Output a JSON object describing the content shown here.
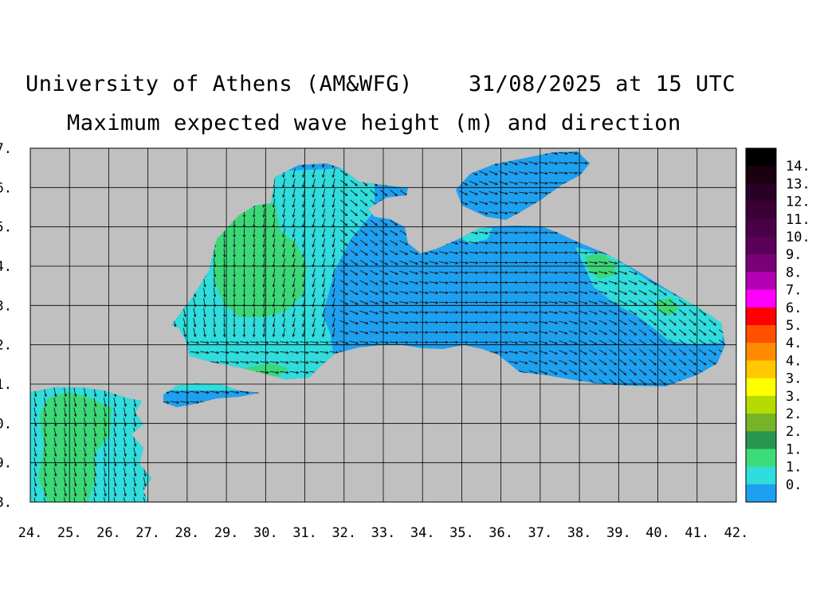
{
  "header": {
    "institution": "University of Athens (AM&WFG)",
    "datetime": "31/08/2025 at 15 UTC",
    "subtitle": "Maximum expected wave height (m) and direction"
  },
  "map": {
    "lon_ticks": [
      "24.",
      "25.",
      "26.",
      "27.",
      "28.",
      "29.",
      "30.",
      "31.",
      "32.",
      "33.",
      "34.",
      "35.",
      "36.",
      "37.",
      "38.",
      "39.",
      "40.",
      "41.",
      "42."
    ],
    "lat_ticks": [
      "7.",
      "6.",
      "5.",
      "4.",
      "3.",
      "2.",
      "1.",
      "0.",
      "9.",
      "8."
    ],
    "colors": {
      "land": "#c0c0c0",
      "wave_0_05": "#1ea0f0",
      "wave_05_1": "#30dcdc",
      "wave_1_15": "#3cd878",
      "grid": "#000000"
    }
  },
  "colorbar": {
    "labels": [
      "14.",
      "13.",
      "12.",
      "11.",
      "10.",
      "9.",
      "8.",
      "7.",
      "6.",
      "5.",
      "4.",
      "4.",
      "3.",
      "3.",
      "2.",
      "2.",
      "1.",
      "1.",
      "0."
    ],
    "colors": [
      "#000000",
      "#1a0010",
      "#2a0024",
      "#3a0036",
      "#4a0046",
      "#5a0058",
      "#7a0078",
      "#b400b4",
      "#ff00ff",
      "#ff0000",
      "#ff5000",
      "#ff8c00",
      "#ffc800",
      "#ffff00",
      "#b4dc00",
      "#78b428",
      "#289650",
      "#3cdc78",
      "#30dcdc",
      "#1ea0f0"
    ]
  }
}
